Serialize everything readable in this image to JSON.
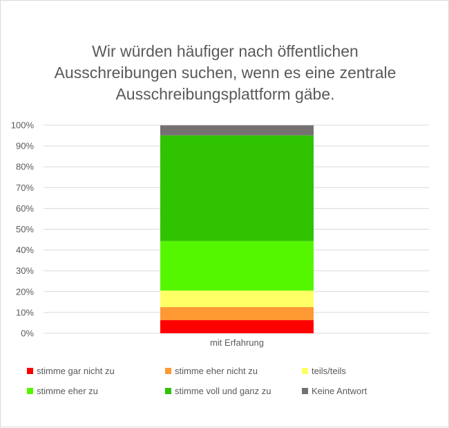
{
  "chart_data": {
    "type": "bar",
    "stacked": true,
    "title": "Wir würden häufiger nach öffentlichen Ausschreibungen suchen, wenn es eine zentrale Ausschreibungsplattform gäbe.",
    "title_lines": [
      "Wir würden häufiger nach öffentlichen",
      "Ausschreibungen suchen, wenn es eine zentrale",
      "Ausschreibungsplattform gäbe."
    ],
    "categories": [
      "mit Erfahrung"
    ],
    "ylim": [
      0,
      100
    ],
    "yticks": [
      "0%",
      "10%",
      "20%",
      "30%",
      "40%",
      "50%",
      "60%",
      "70%",
      "80%",
      "90%",
      "100%"
    ],
    "grid": true,
    "legend_position": "bottom",
    "series": [
      {
        "name": "stimme gar nicht zu",
        "values": [
          6.3
        ],
        "color": "#ff0000"
      },
      {
        "name": "stimme eher nicht zu",
        "values": [
          6.3
        ],
        "color": "#ff9933"
      },
      {
        "name": "teils/teils",
        "values": [
          7.9
        ],
        "color": "#ffff66"
      },
      {
        "name": "stimme eher zu",
        "values": [
          23.8
        ],
        "color": "#55f700"
      },
      {
        "name": "stimme voll und ganz zu",
        "values": [
          50.8
        ],
        "color": "#2fc300"
      },
      {
        "name": "Keine Antwort",
        "values": [
          4.8
        ],
        "color": "#767171"
      }
    ]
  }
}
